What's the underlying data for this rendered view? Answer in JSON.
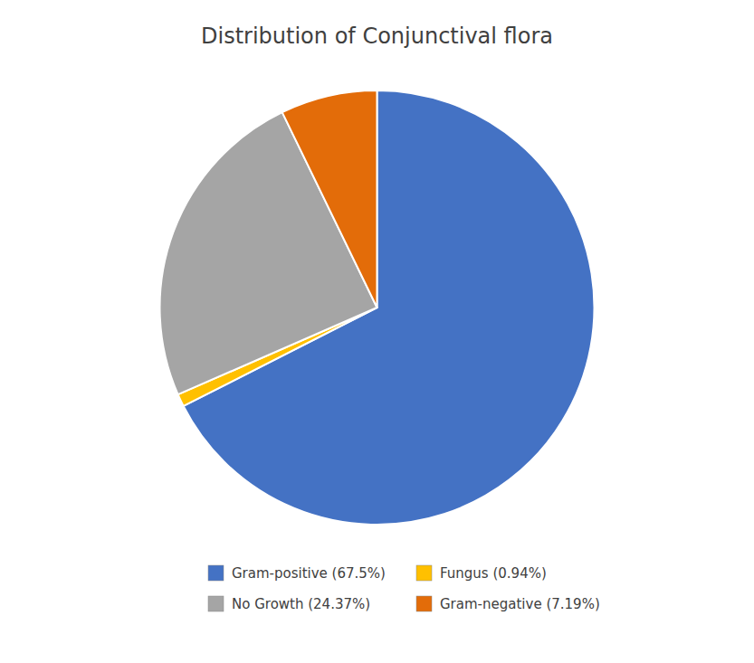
{
  "chart_data": {
    "type": "pie",
    "title": "Distribution of Conjunctival flora",
    "categories": [
      "Gram-positive (67.5%)",
      "Fungus (0.94%)",
      "No Growth (24.37%)",
      "Gram-negative (7.19%)"
    ],
    "values": [
      67.5,
      0.94,
      24.37,
      7.19
    ],
    "colors": [
      "#4472C4",
      "#FFC000",
      "#A5A5A5",
      "#E36C09"
    ],
    "legend": "bottom"
  }
}
